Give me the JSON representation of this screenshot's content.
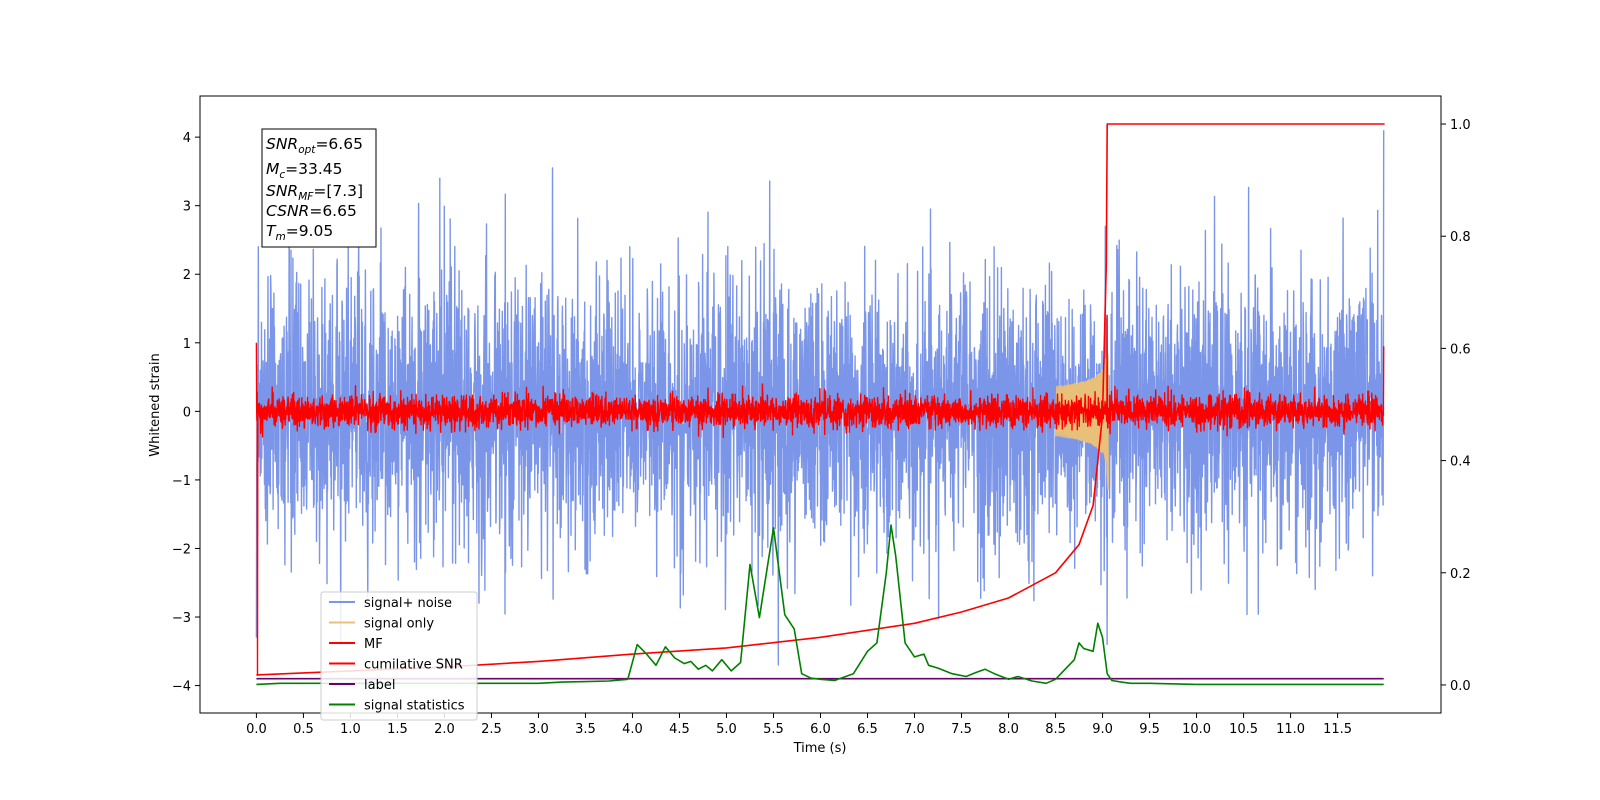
{
  "chart_data": {
    "type": "line",
    "title": "",
    "xlabel": "Time (s)",
    "ylabel": "Whitened strain",
    "xlim": [
      -0.6,
      12.6
    ],
    "ylim": [
      -4.4,
      4.6
    ],
    "ylim_right": [
      -0.05,
      1.05
    ],
    "grid": false,
    "legend_position": "lower-left",
    "x_ticks": [
      "0.0",
      "0.5",
      "1.0",
      "1.5",
      "2.0",
      "2.5",
      "3.0",
      "3.5",
      "4.0",
      "4.5",
      "5.0",
      "5.5",
      "6.0",
      "6.5",
      "7.0",
      "7.5",
      "8.0",
      "8.5",
      "9.0",
      "9.5",
      "10.0",
      "10.5",
      "11.0",
      "11.5"
    ],
    "y_ticks_left": [
      "−4",
      "−3",
      "−2",
      "−1",
      "0",
      "1",
      "2",
      "3",
      "4"
    ],
    "y_ticks_right": [
      "0.0",
      "0.2",
      "0.4",
      "0.6",
      "0.8",
      "1.0"
    ],
    "annotation": {
      "snr_opt_base": "SNR",
      "snr_opt_sub": "opt",
      "snr_opt_value": "=6.65",
      "mc_base": "M",
      "mc_sub": "c",
      "mc_value": "=33.45",
      "snr_mf_base": "SNR",
      "snr_mf_sub": "MF",
      "snr_mf_value": "=[7.3]",
      "csnr_base": "CSNR",
      "csnr_value": "=6.65",
      "tm_base": "T",
      "tm_sub": "m",
      "tm_value": "=9.05"
    },
    "series": [
      {
        "name": "signal+ noise",
        "color": "#7b96e8",
        "axis": "left",
        "kind": "noise",
        "t_start": 0.0,
        "t_end": 11.99,
        "sigma": 1.0,
        "extremes": [
          [
            0.0,
            -3.3
          ],
          [
            0.02,
            2.4
          ],
          [
            1.95,
            3.4
          ],
          [
            3.15,
            3.55
          ],
          [
            5.55,
            -3.7
          ],
          [
            11.99,
            4.1
          ]
        ]
      },
      {
        "name": "signal only",
        "color": "#e8c07a",
        "axis": "left",
        "kind": "chirp",
        "t_start": 8.5,
        "t_end": 9.07,
        "peak_time": 9.05,
        "peak_amplitude": 1.5
      },
      {
        "name": "MF",
        "color": "#ff0000",
        "axis": "left",
        "kind": "noise",
        "t_start": 0.0,
        "t_end": 11.99,
        "sigma": 0.12,
        "extremes": [
          [
            0.0,
            1.0
          ],
          [
            0.01,
            -3.85
          ],
          [
            11.99,
            0.95
          ],
          [
            9.05,
            1.4
          ]
        ]
      },
      {
        "name": "cumilative SNR",
        "color": "#ff0000",
        "axis": "right",
        "kind": "line",
        "x": [
          0.0,
          1.0,
          2.0,
          3.0,
          4.0,
          5.0,
          6.0,
          7.0,
          7.5,
          8.0,
          8.5,
          8.75,
          8.9,
          9.0,
          9.04,
          9.05,
          12.0
        ],
        "y": [
          0.018,
          0.025,
          0.032,
          0.042,
          0.055,
          0.066,
          0.085,
          0.11,
          0.13,
          0.155,
          0.2,
          0.25,
          0.32,
          0.48,
          0.75,
          1.0,
          1.0
        ]
      },
      {
        "name": "label",
        "color": "#6a006a",
        "axis": "left",
        "kind": "line",
        "x": [
          0.0,
          11.99
        ],
        "y": [
          -3.9,
          -3.9
        ]
      },
      {
        "name": "signal statistics",
        "color": "#008000",
        "axis": "right",
        "kind": "line",
        "x": [
          0.0,
          0.25,
          0.5,
          1.0,
          1.5,
          2.0,
          2.5,
          3.0,
          3.25,
          3.5,
          3.75,
          3.95,
          4.05,
          4.15,
          4.25,
          4.35,
          4.45,
          4.55,
          4.62,
          4.7,
          4.78,
          4.85,
          4.95,
          5.05,
          5.15,
          5.25,
          5.35,
          5.5,
          5.62,
          5.72,
          5.8,
          5.9,
          6.0,
          6.15,
          6.35,
          6.5,
          6.6,
          6.7,
          6.75,
          6.8,
          6.9,
          7.0,
          7.1,
          7.15,
          7.25,
          7.4,
          7.55,
          7.65,
          7.75,
          7.85,
          8.0,
          8.1,
          8.25,
          8.4,
          8.5,
          8.7,
          8.75,
          8.8,
          8.9,
          8.95,
          9.0,
          9.05,
          9.1,
          9.2,
          9.3,
          9.5,
          10.0,
          11.0,
          11.99
        ],
        "y": [
          0.001,
          0.003,
          0.003,
          0.003,
          0.003,
          0.003,
          0.003,
          0.003,
          0.005,
          0.006,
          0.007,
          0.01,
          0.072,
          0.055,
          0.035,
          0.068,
          0.048,
          0.038,
          0.042,
          0.028,
          0.035,
          0.025,
          0.045,
          0.025,
          0.04,
          0.215,
          0.12,
          0.28,
          0.125,
          0.1,
          0.02,
          0.012,
          0.01,
          0.008,
          0.02,
          0.06,
          0.075,
          0.2,
          0.285,
          0.23,
          0.075,
          0.05,
          0.055,
          0.035,
          0.03,
          0.02,
          0.015,
          0.022,
          0.028,
          0.02,
          0.01,
          0.015,
          0.007,
          0.003,
          0.01,
          0.045,
          0.075,
          0.065,
          0.06,
          0.11,
          0.085,
          0.02,
          0.008,
          0.005,
          0.003,
          0.003,
          0.001,
          0.001,
          0.001
        ]
      }
    ]
  }
}
